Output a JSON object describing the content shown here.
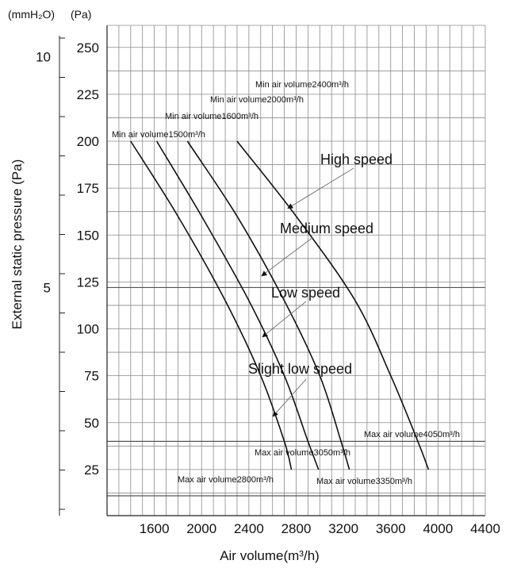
{
  "units": {
    "left": "(mmH₂O)",
    "right": "(Pa)"
  },
  "chart_data": {
    "type": "line",
    "xlabel": "Air volume(m³/h)",
    "ylabel": "External static pressure (Pa)",
    "xlim": [
      1200,
      4400
    ],
    "ylim": [
      0,
      260
    ],
    "x_ticks": [
      "1600",
      "2000",
      "2400",
      "2800",
      "3200",
      "3600",
      "4000",
      "4400"
    ],
    "y_ticks": [
      "25",
      "50",
      "75",
      "100",
      "125",
      "150",
      "175",
      "200",
      "225",
      "250"
    ],
    "secondary_y_ticks": [
      {
        "label": "10",
        "pa": 245
      },
      {
        "label": "5",
        "pa": 122
      }
    ],
    "grid": true,
    "series": [
      {
        "name": "Slight low speed",
        "x": [
          1400,
          1800,
          2200,
          2500,
          2700,
          2760
        ],
        "y": [
          200,
          160,
          115,
          75,
          40,
          25
        ]
      },
      {
        "name": "Low speed",
        "x": [
          1620,
          2000,
          2400,
          2700,
          2900,
          2990
        ],
        "y": [
          200,
          160,
          115,
          75,
          40,
          25
        ]
      },
      {
        "name": "Medium speed",
        "x": [
          1880,
          2300,
          2700,
          3000,
          3180,
          3250
        ],
        "y": [
          200,
          160,
          115,
          75,
          40,
          25
        ]
      },
      {
        "name": "High speed",
        "x": [
          2300,
          2800,
          3300,
          3600,
          3830,
          3920
        ],
        "y": [
          200,
          160,
          115,
          75,
          40,
          25
        ]
      }
    ],
    "curve_labels": [
      {
        "text": "High speed",
        "series": "High speed"
      },
      {
        "text": "Medium speed",
        "series": "Medium speed"
      },
      {
        "text": "Low speed",
        "series": "Low speed"
      },
      {
        "text": "Slight low speed",
        "series": "Slight low speed"
      }
    ],
    "annotations": {
      "min": [
        {
          "text": "Min air volume2400m³/h"
        },
        {
          "text": "Min air volume2000m³/h"
        },
        {
          "text": "Min air volume1600m³/h"
        },
        {
          "text": "Min air volume1500m³/h"
        }
      ],
      "max": [
        {
          "text": "Max air volume4050m³/h"
        },
        {
          "text": "Max air volume3050m³/h"
        },
        {
          "text": "Max air volume2800m³/h"
        },
        {
          "text": "Max air volume3350m³/h"
        }
      ]
    }
  }
}
